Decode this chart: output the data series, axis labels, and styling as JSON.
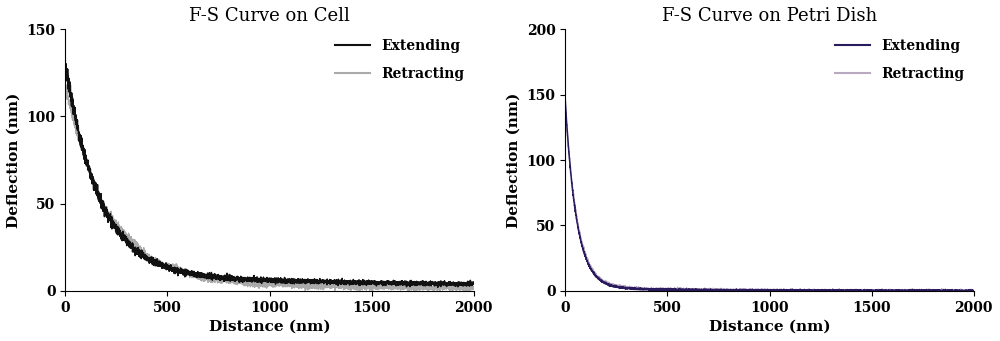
{
  "left_title": "F-S Curve on Cell",
  "right_title": "F-S Curve on Petri Dish",
  "xlabel": "Distance (nm)",
  "ylabel": "Deflection (nm)",
  "left_ylim": [
    0,
    150
  ],
  "right_ylim": [
    0,
    200
  ],
  "xlim": [
    0,
    2000
  ],
  "left_yticks": [
    0,
    50,
    100,
    150
  ],
  "right_yticks": [
    0,
    50,
    100,
    150,
    200
  ],
  "xticks": [
    0,
    500,
    1000,
    1500,
    2000
  ],
  "extending_color_left": "#111111",
  "retracting_color_left": "#aaaaaa",
  "extending_color_right": "#2a1a5e",
  "retracting_color_right": "#b8a8c0",
  "legend_extending": "Extending",
  "legend_retracting": "Retracting",
  "background_color": "#ffffff",
  "title_fontsize": 13,
  "label_fontsize": 11,
  "tick_fontsize": 10,
  "legend_fontsize": 10
}
